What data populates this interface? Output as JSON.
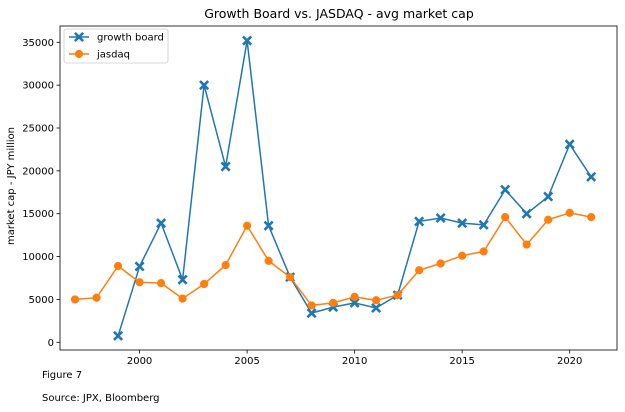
{
  "chart_data": {
    "type": "line",
    "title": "Growth Board vs. JASDAQ - avg market cap",
    "xlabel": "",
    "ylabel": "market cap - JPY million",
    "xlim": [
      1996.3,
      2022.2
    ],
    "ylim": [
      -900,
      36900
    ],
    "xticks": [
      2000,
      2005,
      2010,
      2015,
      2020
    ],
    "yticks": [
      0,
      5000,
      10000,
      15000,
      20000,
      25000,
      30000,
      35000
    ],
    "grid": false,
    "legend_position": "top-left",
    "series": [
      {
        "name": "growth board",
        "color": "#1f77b4",
        "marker": "x",
        "x": [
          1999,
          2000,
          2001,
          2002,
          2003,
          2004,
          2005,
          2006,
          2007,
          2008,
          2009,
          2010,
          2011,
          2012,
          2013,
          2014,
          2015,
          2016,
          2017,
          2018,
          2019,
          2020,
          2021
        ],
        "y": [
          750,
          8850,
          13900,
          7300,
          30000,
          20500,
          35200,
          13600,
          7600,
          3400,
          4100,
          4600,
          4000,
          5500,
          14100,
          14500,
          13900,
          13700,
          17800,
          15000,
          17000,
          23100,
          19300
        ]
      },
      {
        "name": "jasdaq",
        "color": "#ff7f0e",
        "marker": "o",
        "x": [
          1997,
          1998,
          1999,
          2000,
          2001,
          2002,
          2003,
          2004,
          2005,
          2006,
          2007,
          2008,
          2009,
          2010,
          2011,
          2012,
          2013,
          2014,
          2015,
          2016,
          2017,
          2018,
          2019,
          2020,
          2021
        ],
        "y": [
          5000,
          5200,
          8900,
          7000,
          6900,
          5100,
          6800,
          9000,
          13600,
          9500,
          7600,
          4300,
          4600,
          5300,
          4900,
          5500,
          8400,
          9200,
          10100,
          10600,
          14600,
          11400,
          14300,
          15100,
          14600
        ]
      }
    ]
  },
  "caption": {
    "figure": "Figure 7",
    "source": "Source: JPX, Bloomberg"
  }
}
